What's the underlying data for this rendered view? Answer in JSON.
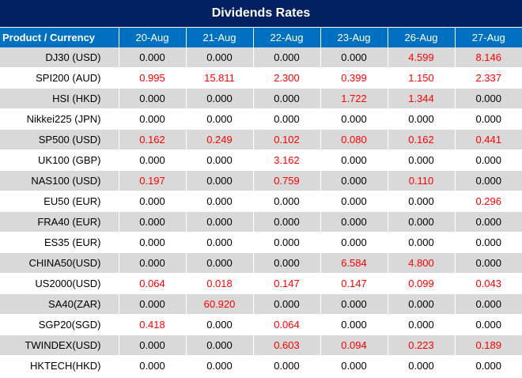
{
  "title": "Dividends Rates",
  "header": {
    "product_label": "Product / Currency",
    "dates": [
      "20-Aug",
      "21-Aug",
      "22-Aug",
      "23-Aug",
      "26-Aug",
      "27-Aug"
    ]
  },
  "colors": {
    "title_bg": "#002060",
    "header_bg": "#0070c0",
    "shade": "#d9d9d9",
    "highlight": "#ff0000"
  },
  "rows": [
    {
      "product": "DJ30 (USD)",
      "values": [
        "0.000",
        "0.000",
        "0.000",
        "0.000",
        "4.599",
        "8.146"
      ],
      "red": [
        false,
        false,
        false,
        false,
        true,
        true
      ]
    },
    {
      "product": "SPI200 (AUD)",
      "values": [
        "0.995",
        "15.811",
        "2.300",
        "0.399",
        "1.150",
        "2.337"
      ],
      "red": [
        true,
        true,
        true,
        true,
        true,
        true
      ]
    },
    {
      "product": "HSI (HKD)",
      "values": [
        "0.000",
        "0.000",
        "0.000",
        "1.722",
        "1.344",
        "0.000"
      ],
      "red": [
        false,
        false,
        false,
        true,
        true,
        false
      ]
    },
    {
      "product": "Nikkei225 (JPN)",
      "values": [
        "0.000",
        "0.000",
        "0.000",
        "0.000",
        "0.000",
        "0.000"
      ],
      "red": [
        false,
        false,
        false,
        false,
        false,
        false
      ]
    },
    {
      "product": "SP500 (USD)",
      "values": [
        "0.162",
        "0.249",
        "0.102",
        "0.080",
        "0.162",
        "0.441"
      ],
      "red": [
        true,
        true,
        true,
        true,
        true,
        true
      ]
    },
    {
      "product": "UK100 (GBP)",
      "values": [
        "0.000",
        "0.000",
        "3.162",
        "0.000",
        "0.000",
        "0.000"
      ],
      "red": [
        false,
        false,
        true,
        false,
        false,
        false
      ]
    },
    {
      "product": "NAS100 (USD)",
      "values": [
        "0.197",
        "0.000",
        "0.759",
        "0.000",
        "0.110",
        "0.000"
      ],
      "red": [
        true,
        false,
        true,
        false,
        true,
        false
      ]
    },
    {
      "product": "EU50 (EUR)",
      "values": [
        "0.000",
        "0.000",
        "0.000",
        "0.000",
        "0.000",
        "0.296"
      ],
      "red": [
        false,
        false,
        false,
        false,
        false,
        true
      ]
    },
    {
      "product": "FRA40 (EUR)",
      "values": [
        "0.000",
        "0.000",
        "0.000",
        "0.000",
        "0.000",
        "0.000"
      ],
      "red": [
        false,
        false,
        false,
        false,
        false,
        false
      ]
    },
    {
      "product": "ES35 (EUR)",
      "values": [
        "0.000",
        "0.000",
        "0.000",
        "0.000",
        "0.000",
        "0.000"
      ],
      "red": [
        false,
        false,
        false,
        false,
        false,
        false
      ]
    },
    {
      "product": "CHINA50(USD)",
      "values": [
        "0.000",
        "0.000",
        "0.000",
        "6.584",
        "4.800",
        "0.000"
      ],
      "red": [
        false,
        false,
        false,
        true,
        true,
        false
      ]
    },
    {
      "product": "US2000(USD)",
      "values": [
        "0.064",
        "0.018",
        "0.147",
        "0.147",
        "0.099",
        "0.043"
      ],
      "red": [
        true,
        true,
        true,
        true,
        true,
        true
      ]
    },
    {
      "product": "SA40(ZAR)",
      "values": [
        "0.000",
        "60.920",
        "0.000",
        "0.000",
        "0.000",
        "0.000"
      ],
      "red": [
        false,
        true,
        false,
        false,
        false,
        false
      ]
    },
    {
      "product": "SGP20(SGD)",
      "values": [
        "0.418",
        "0.000",
        "0.064",
        "0.000",
        "0.000",
        "0.000"
      ],
      "red": [
        true,
        false,
        true,
        false,
        false,
        false
      ]
    },
    {
      "product": "TWINDEX(USD)",
      "values": [
        "0.000",
        "0.000",
        "0.603",
        "0.094",
        "0.223",
        "0.189"
      ],
      "red": [
        false,
        false,
        true,
        true,
        true,
        true
      ]
    },
    {
      "product": "HKTECH(HKD)",
      "values": [
        "0.000",
        "0.000",
        "0.000",
        "0.000",
        "0.000",
        "0.000"
      ],
      "red": [
        false,
        false,
        false,
        false,
        false,
        false
      ]
    }
  ]
}
